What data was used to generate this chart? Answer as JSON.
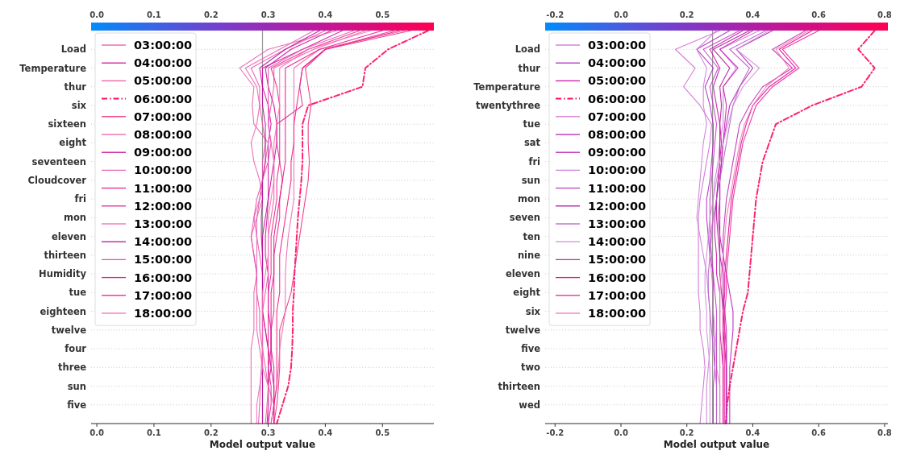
{
  "chart_data": [
    {
      "type": "line",
      "orientation": "horizontal",
      "xlabel": "Model output value",
      "categories": [
        null,
        "Load",
        "Temperature",
        "thur",
        "six",
        "sixteen",
        "eight",
        "seventeen",
        "Cloudcover",
        "fri",
        "mon",
        "eleven",
        "thirteen",
        "Humidity",
        "tue",
        "eighteen",
        "twelve",
        "four",
        "three",
        "sun",
        "five",
        null
      ],
      "xlim": [
        -0.01,
        0.59
      ],
      "xticks": [
        {
          "value": 0,
          "label": "0.0"
        },
        0.1,
        0.2,
        0.3,
        0.4,
        0.5
      ],
      "clim": [
        -0.01,
        0.59
      ],
      "cticks": [
        {
          "value": 0,
          "label": "0.0"
        },
        0.1,
        0.2,
        0.3,
        0.4,
        0.5
      ],
      "grid": "y",
      "legend": "top left",
      "ref_lines": [
        {
          "axis": "x",
          "value": 0.29,
          "color": "#999999"
        }
      ],
      "series": [
        {
          "name": "03:00:00",
          "color": "#e85aa8",
          "values": [
            0.4,
            0.33,
            0.27,
            0.285,
            0.285,
            0.29,
            0.295,
            0.29,
            0.29,
            0.285,
            0.28,
            0.28,
            0.285,
            0.29,
            0.29,
            0.29,
            0.29,
            0.29,
            0.288,
            0.286,
            0.285,
            0.283
          ]
        },
        {
          "name": "04:00:00",
          "color": "#d0159f",
          "values": [
            0.43,
            0.36,
            0.29,
            0.29,
            0.3,
            0.305,
            0.3,
            0.3,
            0.3,
            0.3,
            0.298,
            0.295,
            0.295,
            0.3,
            0.3,
            0.3,
            0.305,
            0.305,
            0.305,
            0.3,
            0.3,
            0.298
          ]
        },
        {
          "name": "05:00:00",
          "color": "#ee5aa5",
          "values": [
            0.47,
            0.38,
            0.31,
            0.31,
            0.305,
            0.3,
            0.305,
            0.31,
            0.31,
            0.31,
            0.305,
            0.3,
            0.3,
            0.3,
            0.295,
            0.29,
            0.295,
            0.3,
            0.3,
            0.3,
            0.298,
            0.295
          ]
        },
        {
          "name": "06:00:00",
          "color": "#ff0a64",
          "line_style": "dashdot",
          "values": [
            0.58,
            0.51,
            0.47,
            0.465,
            0.37,
            0.36,
            0.36,
            0.36,
            0.358,
            0.355,
            0.352,
            0.35,
            0.348,
            0.346,
            0.345,
            0.343,
            0.343,
            0.342,
            0.34,
            0.335,
            0.325,
            0.315
          ]
        },
        {
          "name": "07:00:00",
          "color": "#f0307f",
          "values": [
            0.55,
            0.4,
            0.365,
            0.37,
            0.375,
            0.37,
            0.37,
            0.372,
            0.37,
            0.365,
            0.36,
            0.355,
            0.35,
            0.345,
            0.34,
            0.33,
            0.32,
            0.32,
            0.32,
            0.318,
            0.315,
            0.31
          ]
        },
        {
          "name": "08:00:00",
          "color": "#ee60b0",
          "values": [
            0.38,
            0.32,
            0.26,
            0.28,
            0.285,
            0.28,
            0.27,
            0.275,
            0.285,
            0.29,
            0.28,
            0.27,
            0.275,
            0.28,
            0.28,
            0.28,
            0.28,
            0.285,
            0.29,
            0.3,
            0.31,
            0.31
          ]
        },
        {
          "name": "09:00:00",
          "color": "#c8109a",
          "values": [
            0.41,
            0.34,
            0.295,
            0.3,
            0.31,
            0.315,
            0.315,
            0.31,
            0.305,
            0.3,
            0.295,
            0.29,
            0.29,
            0.29,
            0.29,
            0.29,
            0.295,
            0.3,
            0.305,
            0.31,
            0.31,
            0.305
          ]
        },
        {
          "name": "10:00:00",
          "color": "#e864b0",
          "values": [
            0.42,
            0.3,
            0.25,
            0.275,
            0.272,
            0.275,
            0.3,
            0.295,
            0.29,
            0.285,
            0.275,
            0.28,
            0.28,
            0.28,
            0.275,
            0.275,
            0.275,
            0.27,
            0.27,
            0.27,
            0.27,
            0.27
          ]
        },
        {
          "name": "11:00:00",
          "color": "#e8258f",
          "values": [
            0.46,
            0.37,
            0.305,
            0.315,
            0.32,
            0.32,
            0.32,
            0.32,
            0.315,
            0.315,
            0.31,
            0.305,
            0.305,
            0.305,
            0.3,
            0.3,
            0.3,
            0.3,
            0.3,
            0.305,
            0.305,
            0.3
          ]
        },
        {
          "name": "12:00:00",
          "color": "#e02c90",
          "values": [
            0.52,
            0.4,
            0.36,
            0.355,
            0.36,
            0.315,
            0.315,
            0.32,
            0.325,
            0.32,
            0.32,
            0.315,
            0.31,
            0.31,
            0.31,
            0.31,
            0.305,
            0.305,
            0.3,
            0.3,
            0.3,
            0.3
          ]
        },
        {
          "name": "13:00:00",
          "color": "#ec6ab5",
          "values": [
            0.54,
            0.39,
            0.345,
            0.345,
            0.345,
            0.345,
            0.345,
            0.345,
            0.345,
            0.345,
            0.34,
            0.335,
            0.332,
            0.33,
            0.33,
            0.33,
            0.325,
            0.32,
            0.318,
            0.315,
            0.31,
            0.305
          ]
        },
        {
          "name": "14:00:00",
          "color": "#b8139c",
          "values": [
            0.39,
            0.33,
            0.285,
            0.29,
            0.29,
            0.295,
            0.295,
            0.295,
            0.29,
            0.29,
            0.288,
            0.288,
            0.29,
            0.29,
            0.29,
            0.29,
            0.29,
            0.29,
            0.29,
            0.29,
            0.29,
            0.29
          ]
        },
        {
          "name": "15:00:00",
          "color": "#e654ad",
          "values": [
            0.45,
            0.36,
            0.3,
            0.3,
            0.3,
            0.3,
            0.305,
            0.3,
            0.29,
            0.28,
            0.275,
            0.27,
            0.275,
            0.28,
            0.28,
            0.285,
            0.285,
            0.29,
            0.295,
            0.3,
            0.3,
            0.3
          ]
        },
        {
          "name": "16:00:00",
          "color": "#e8138c",
          "values": [
            0.5,
            0.39,
            0.33,
            0.33,
            0.33,
            0.33,
            0.33,
            0.33,
            0.325,
            0.32,
            0.315,
            0.31,
            0.31,
            0.31,
            0.305,
            0.305,
            0.305,
            0.305,
            0.31,
            0.31,
            0.31,
            0.31
          ]
        },
        {
          "name": "17:00:00",
          "color": "#f21a86",
          "values": [
            0.53,
            0.4,
            0.36,
            0.355,
            0.35,
            0.345,
            0.345,
            0.34,
            0.34,
            0.335,
            0.33,
            0.325,
            0.32,
            0.32,
            0.32,
            0.315,
            0.315,
            0.315,
            0.315,
            0.315,
            0.31,
            0.31
          ]
        },
        {
          "name": "18:00:00",
          "color": "#f272b6",
          "values": [
            0.48,
            0.37,
            0.32,
            0.32,
            0.32,
            0.315,
            0.31,
            0.31,
            0.31,
            0.305,
            0.3,
            0.3,
            0.3,
            0.295,
            0.29,
            0.29,
            0.29,
            0.29,
            0.29,
            0.285,
            0.28,
            0.28
          ]
        }
      ]
    },
    {
      "type": "line",
      "orientation": "horizontal",
      "xlabel": "Model output value",
      "categories": [
        null,
        "Load",
        "thur",
        "Temperature",
        "twentythree",
        "tue",
        "sat",
        "fri",
        "sun",
        "mon",
        "seven",
        "ten",
        "nine",
        "eleven",
        "eight",
        "six",
        "twelve",
        "five",
        "two",
        "thirteen",
        "wed",
        null
      ],
      "xlim": [
        -0.23,
        0.81
      ],
      "xticks": [
        -0.2,
        {
          "value": 0,
          "label": "0.0"
        },
        0.2,
        0.4,
        0.6,
        0.8
      ],
      "clim": [
        -0.23,
        0.81
      ],
      "cticks": [
        -0.2,
        {
          "value": 0,
          "label": "0.0"
        },
        0.2,
        0.4,
        0.6,
        0.8
      ],
      "grid": "y",
      "legend": "top left",
      "ref_lines": [
        {
          "axis": "x",
          "value": 0.278,
          "color": "#999999"
        }
      ],
      "series": [
        {
          "name": "03:00:00",
          "color": "#d070d0",
          "values": [
            0.3,
            0.165,
            0.225,
            0.19,
            0.24,
            0.275,
            0.27,
            0.26,
            0.25,
            0.24,
            0.235,
            0.235,
            0.235,
            0.235,
            0.235,
            0.24,
            0.24,
            0.25,
            0.255,
            0.25,
            0.245,
            0.24
          ]
        },
        {
          "name": "04:00:00",
          "color": "#b030c0",
          "values": [
            0.33,
            0.23,
            0.28,
            0.255,
            0.27,
            0.28,
            0.28,
            0.275,
            0.27,
            0.26,
            0.26,
            0.265,
            0.27,
            0.28,
            0.28,
            0.28,
            0.28,
            0.285,
            0.285,
            0.28,
            0.28,
            0.28
          ]
        },
        {
          "name": "05:00:00",
          "color": "#c818a8",
          "values": [
            0.37,
            0.27,
            0.3,
            0.28,
            0.29,
            0.3,
            0.305,
            0.3,
            0.295,
            0.29,
            0.285,
            0.285,
            0.29,
            0.29,
            0.3,
            0.3,
            0.3,
            0.305,
            0.31,
            0.31,
            0.31,
            0.31
          ]
        },
        {
          "name": "06:00:00",
          "color": "#ff0a5a",
          "line_style": "dashdot",
          "values": [
            0.77,
            0.72,
            0.77,
            0.73,
            0.58,
            0.47,
            0.45,
            0.43,
            0.42,
            0.41,
            0.405,
            0.4,
            0.395,
            0.39,
            0.385,
            0.37,
            0.36,
            0.35,
            0.34,
            0.33,
            0.322,
            0.318
          ]
        },
        {
          "name": "07:00:00",
          "color": "#d878d0",
          "values": [
            0.42,
            0.3,
            0.35,
            0.31,
            0.31,
            0.31,
            0.3,
            0.295,
            0.285,
            0.28,
            0.28,
            0.27,
            0.27,
            0.275,
            0.28,
            0.28,
            0.285,
            0.29,
            0.29,
            0.3,
            0.3,
            0.3
          ]
        },
        {
          "name": "08:00:00",
          "color": "#b820b8",
          "values": [
            0.46,
            0.35,
            0.4,
            0.36,
            0.33,
            0.32,
            0.31,
            0.305,
            0.3,
            0.3,
            0.3,
            0.3,
            0.31,
            0.32,
            0.33,
            0.34,
            0.34,
            0.335,
            0.33,
            0.33,
            0.33,
            0.33
          ]
        },
        {
          "name": "09:00:00",
          "color": "#c020b0",
          "values": [
            0.4,
            0.3,
            0.355,
            0.31,
            0.32,
            0.315,
            0.31,
            0.305,
            0.3,
            0.3,
            0.295,
            0.3,
            0.3,
            0.31,
            0.31,
            0.315,
            0.32,
            0.32,
            0.32,
            0.32,
            0.32,
            0.32
          ]
        },
        {
          "name": "10:00:00",
          "color": "#cc80d8",
          "values": [
            0.29,
            0.23,
            0.26,
            0.25,
            0.25,
            0.26,
            0.25,
            0.245,
            0.24,
            0.235,
            0.23,
            0.24,
            0.25,
            0.26,
            0.265,
            0.27,
            0.27,
            0.27,
            0.265,
            0.26,
            0.26,
            0.26
          ]
        },
        {
          "name": "11:00:00",
          "color": "#c040c0",
          "values": [
            0.36,
            0.25,
            0.295,
            0.27,
            0.28,
            0.29,
            0.285,
            0.28,
            0.275,
            0.27,
            0.27,
            0.27,
            0.275,
            0.28,
            0.285,
            0.29,
            0.29,
            0.29,
            0.29,
            0.29,
            0.29,
            0.29
          ]
        },
        {
          "name": "12:00:00",
          "color": "#b01898",
          "values": [
            0.39,
            0.28,
            0.33,
            0.3,
            0.305,
            0.3,
            0.3,
            0.3,
            0.295,
            0.29,
            0.29,
            0.295,
            0.3,
            0.3,
            0.305,
            0.31,
            0.31,
            0.315,
            0.32,
            0.32,
            0.32,
            0.32
          ]
        },
        {
          "name": "13:00:00",
          "color": "#b860c8",
          "values": [
            0.44,
            0.33,
            0.39,
            0.36,
            0.34,
            0.33,
            0.32,
            0.31,
            0.3,
            0.29,
            0.28,
            0.275,
            0.27,
            0.265,
            0.265,
            0.27,
            0.275,
            0.28,
            0.285,
            0.29,
            0.29,
            0.29
          ]
        },
        {
          "name": "14:00:00",
          "color": "#d090d8",
          "values": [
            0.45,
            0.35,
            0.42,
            0.37,
            0.34,
            0.325,
            0.31,
            0.3,
            0.29,
            0.28,
            0.27,
            0.265,
            0.26,
            0.255,
            0.255,
            0.26,
            0.26,
            0.265,
            0.27,
            0.27,
            0.27,
            0.27
          ]
        },
        {
          "name": "15:00:00",
          "color": "#c030b0",
          "values": [
            0.56,
            0.46,
            0.52,
            0.43,
            0.39,
            0.36,
            0.35,
            0.34,
            0.33,
            0.32,
            0.315,
            0.31,
            0.31,
            0.31,
            0.31,
            0.31,
            0.315,
            0.32,
            0.32,
            0.32,
            0.32,
            0.32
          ]
        },
        {
          "name": "16:00:00",
          "color": "#e00a90",
          "values": [
            0.58,
            0.48,
            0.53,
            0.45,
            0.4,
            0.38,
            0.365,
            0.355,
            0.345,
            0.335,
            0.33,
            0.325,
            0.32,
            0.315,
            0.315,
            0.31,
            0.31,
            0.31,
            0.31,
            0.31,
            0.31,
            0.31
          ]
        },
        {
          "name": "17:00:00",
          "color": "#f0209a",
          "values": [
            0.6,
            0.49,
            0.54,
            0.46,
            0.41,
            0.39,
            0.37,
            0.36,
            0.35,
            0.34,
            0.335,
            0.33,
            0.325,
            0.32,
            0.32,
            0.315,
            0.315,
            0.315,
            0.315,
            0.315,
            0.315,
            0.315
          ]
        },
        {
          "name": "18:00:00",
          "color": "#f078b8",
          "values": [
            0.57,
            0.47,
            0.51,
            0.44,
            0.4,
            0.375,
            0.36,
            0.35,
            0.34,
            0.33,
            0.32,
            0.315,
            0.31,
            0.305,
            0.3,
            0.3,
            0.3,
            0.3,
            0.3,
            0.3,
            0.3,
            0.3
          ]
        }
      ]
    }
  ]
}
